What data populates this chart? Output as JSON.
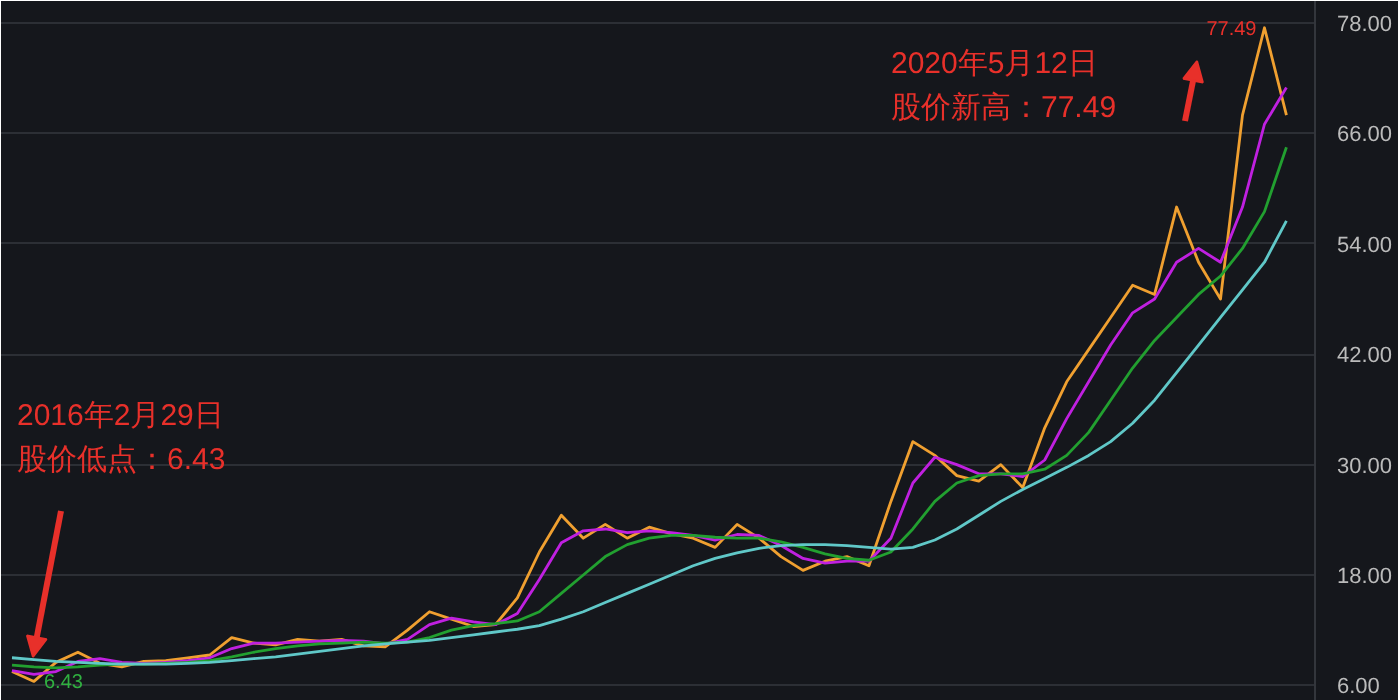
{
  "chart_data": {
    "type": "line",
    "categories": [
      null,
      null,
      null,
      null,
      null,
      null,
      null,
      null,
      null,
      null,
      null,
      null,
      null,
      null,
      null,
      null,
      null,
      null,
      null,
      null,
      null,
      null,
      null,
      null,
      null,
      null,
      null,
      null,
      null,
      null,
      null,
      null,
      null,
      null,
      null,
      null,
      null,
      null,
      null,
      null,
      null,
      null,
      null,
      null,
      null,
      null,
      null,
      null,
      null,
      null,
      null,
      null,
      null,
      null,
      null,
      null,
      null,
      null,
      null
    ],
    "series": [
      {
        "color": "#f0a030",
        "values": [
          7.5,
          6.43,
          8.5,
          9.6,
          8.4,
          8.0,
          8.6,
          8.7,
          9.0,
          9.3,
          11.2,
          10.6,
          10.4,
          11.0,
          10.8,
          11.0,
          10.3,
          10.2,
          12.0,
          14.0,
          13.2,
          12.4,
          12.6,
          15.5,
          20.5,
          24.5,
          22.0,
          23.5,
          22.0,
          23.2,
          22.5,
          22.0,
          21.0,
          23.5,
          22.0,
          20.0,
          18.5,
          19.5,
          20.0,
          19.0,
          26.0,
          32.5,
          31.0,
          28.8,
          28.2,
          30.0,
          27.5,
          34.0,
          39.0,
          42.5,
          46.0,
          49.5,
          48.5,
          58.0,
          52.0,
          48.0,
          68.0,
          77.49,
          68.0
        ]
      },
      {
        "color": "#c020e0",
        "values": [
          7.6,
          7.2,
          7.5,
          8.6,
          8.9,
          8.5,
          8.4,
          8.5,
          8.7,
          9.0,
          10.0,
          10.6,
          10.6,
          10.7,
          10.8,
          10.9,
          10.8,
          10.5,
          11.0,
          12.6,
          13.3,
          12.9,
          12.6,
          13.8,
          17.5,
          21.5,
          22.8,
          23.0,
          22.6,
          22.8,
          22.6,
          22.3,
          21.8,
          22.4,
          22.3,
          21.2,
          19.8,
          19.3,
          19.5,
          19.5,
          22.0,
          28.0,
          30.8,
          30.0,
          29.0,
          29.0,
          28.7,
          30.5,
          35.0,
          39.0,
          43.0,
          46.5,
          48.0,
          52.0,
          53.5,
          52.0,
          58.0,
          67.0,
          71.0
        ]
      },
      {
        "color": "#22a030",
        "values": [
          8.2,
          8.0,
          7.9,
          8.0,
          8.2,
          8.3,
          8.3,
          8.4,
          8.5,
          8.7,
          9.1,
          9.6,
          10.0,
          10.3,
          10.5,
          10.6,
          10.7,
          10.6,
          10.7,
          11.2,
          12.0,
          12.5,
          12.7,
          13.0,
          14.0,
          16.0,
          18.0,
          20.0,
          21.3,
          22.0,
          22.3,
          22.3,
          22.1,
          22.0,
          22.0,
          21.6,
          21.0,
          20.3,
          19.8,
          19.6,
          20.5,
          23.0,
          26.0,
          28.0,
          28.8,
          29.0,
          29.0,
          29.5,
          31.0,
          33.5,
          37.0,
          40.5,
          43.5,
          46.0,
          48.5,
          50.5,
          53.5,
          57.5,
          64.5
        ]
      },
      {
        "color": "#60c8c8",
        "values": [
          9.0,
          8.8,
          8.6,
          8.5,
          8.4,
          8.3,
          8.3,
          8.3,
          8.4,
          8.5,
          8.7,
          8.9,
          9.1,
          9.4,
          9.7,
          10.0,
          10.3,
          10.5,
          10.7,
          10.9,
          11.2,
          11.5,
          11.8,
          12.1,
          12.5,
          13.2,
          14.0,
          15.0,
          16.0,
          17.0,
          18.0,
          19.0,
          19.8,
          20.4,
          20.9,
          21.2,
          21.3,
          21.3,
          21.2,
          21.0,
          20.8,
          21.0,
          21.8,
          23.0,
          24.5,
          26.0,
          27.3,
          28.5,
          29.7,
          31.0,
          32.5,
          34.5,
          37.0,
          40.0,
          43.0,
          46.0,
          49.0,
          52.0,
          56.5
        ]
      }
    ],
    "ylim": [
      4.3,
      80.4
    ],
    "yticks": [
      {
        "value": 6,
        "label": "6.00"
      },
      {
        "value": 18,
        "label": "18.00"
      },
      {
        "value": 30,
        "label": "30.00"
      },
      {
        "value": 42,
        "label": "42.00"
      },
      {
        "value": 54,
        "label": "54.00"
      },
      {
        "value": 66,
        "label": "66.00"
      },
      {
        "value": 78,
        "label": "78.00"
      }
    ],
    "tick_labels": "y",
    "grid": "y",
    "annotations": [
      "2020年5月12日",
      "股价新高：77.49",
      "2016年2月29日",
      "股价低点：6.43",
      "77.49",
      "6.43"
    ]
  }
}
